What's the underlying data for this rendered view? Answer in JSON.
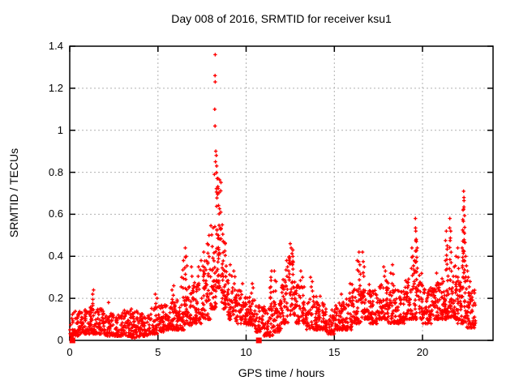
{
  "colors": {
    "marker": "#ff0000",
    "grid": "#b0b0b0",
    "border": "#000000",
    "background": "#ffffff",
    "text": "#000000"
  },
  "chart_data": {
    "type": "scatter",
    "title": "Day 008 of 2016, SRMTID for receiver ksu1",
    "xlabel": "GPS time / hours",
    "ylabel": "SRMTID / TECUs",
    "xlim": [
      0,
      24
    ],
    "ylim": [
      0,
      1.4
    ],
    "grid": "dotted",
    "legend": "none",
    "marker": "plus",
    "marker_color": "#ff0000",
    "xticks": [
      {
        "v": 0,
        "label": "0"
      },
      {
        "v": 5,
        "label": "5"
      },
      {
        "v": 10,
        "label": "10"
      },
      {
        "v": 15,
        "label": "15"
      },
      {
        "v": 20,
        "label": "20"
      }
    ],
    "yticks": [
      {
        "v": 0.0,
        "label": "0"
      },
      {
        "v": 0.2,
        "label": "0.2"
      },
      {
        "v": 0.4,
        "label": "0.4"
      },
      {
        "v": 0.6,
        "label": "0.6"
      },
      {
        "v": 0.8,
        "label": "0.8"
      },
      {
        "v": 1.0,
        "label": "1"
      },
      {
        "v": 1.2,
        "label": "1.2"
      },
      {
        "v": 1.4,
        "label": "1.4"
      }
    ],
    "points_model": {
      "comment": "Dense 30s-sampled scatter, hours 0-23. bins = [t_start, t_end, n_points, y_low, y_high] for the baseline band; spikes/outliers are individually read points.",
      "bins": [
        [
          0.0,
          0.5,
          48,
          0.02,
          0.14
        ],
        [
          0.5,
          1.0,
          48,
          0.03,
          0.15
        ],
        [
          1.0,
          1.5,
          52,
          0.03,
          0.17
        ],
        [
          1.5,
          2.0,
          50,
          0.03,
          0.15
        ],
        [
          2.0,
          2.5,
          46,
          0.02,
          0.14
        ],
        [
          2.5,
          3.0,
          46,
          0.02,
          0.13
        ],
        [
          3.0,
          3.5,
          50,
          0.02,
          0.15
        ],
        [
          3.5,
          4.0,
          50,
          0.01,
          0.14
        ],
        [
          4.0,
          4.5,
          46,
          0.02,
          0.13
        ],
        [
          4.5,
          5.0,
          50,
          0.03,
          0.16
        ],
        [
          5.0,
          5.5,
          50,
          0.04,
          0.17
        ],
        [
          5.5,
          6.0,
          50,
          0.05,
          0.19
        ],
        [
          6.0,
          6.5,
          52,
          0.05,
          0.22
        ],
        [
          6.5,
          7.0,
          52,
          0.07,
          0.26
        ],
        [
          7.0,
          7.5,
          55,
          0.08,
          0.28
        ],
        [
          7.5,
          8.0,
          55,
          0.1,
          0.38
        ],
        [
          8.0,
          8.3,
          40,
          0.15,
          0.55
        ],
        [
          8.3,
          8.6,
          55,
          0.25,
          0.8
        ],
        [
          8.6,
          8.9,
          42,
          0.15,
          0.48
        ],
        [
          8.9,
          9.4,
          50,
          0.1,
          0.32
        ],
        [
          9.4,
          10.0,
          55,
          0.08,
          0.24
        ],
        [
          10.0,
          10.5,
          50,
          0.07,
          0.22
        ],
        [
          10.5,
          11.0,
          46,
          0.04,
          0.17
        ],
        [
          11.0,
          11.5,
          50,
          0.02,
          0.16
        ],
        [
          11.5,
          12.0,
          50,
          0.04,
          0.2
        ],
        [
          12.0,
          12.4,
          44,
          0.08,
          0.3
        ],
        [
          12.4,
          12.8,
          50,
          0.12,
          0.42
        ],
        [
          12.8,
          13.4,
          52,
          0.08,
          0.28
        ],
        [
          13.4,
          14.0,
          52,
          0.05,
          0.22
        ],
        [
          14.0,
          14.5,
          50,
          0.05,
          0.18
        ],
        [
          14.5,
          15.0,
          46,
          0.03,
          0.16
        ],
        [
          15.0,
          15.5,
          50,
          0.05,
          0.18
        ],
        [
          15.5,
          16.0,
          50,
          0.05,
          0.2
        ],
        [
          16.0,
          16.5,
          52,
          0.08,
          0.28
        ],
        [
          16.5,
          17.0,
          52,
          0.1,
          0.28
        ],
        [
          17.0,
          17.5,
          50,
          0.08,
          0.24
        ],
        [
          17.5,
          18.0,
          52,
          0.1,
          0.28
        ],
        [
          18.0,
          18.5,
          52,
          0.08,
          0.28
        ],
        [
          18.5,
          19.0,
          50,
          0.08,
          0.24
        ],
        [
          19.0,
          19.5,
          52,
          0.1,
          0.3
        ],
        [
          19.5,
          20.0,
          55,
          0.1,
          0.32
        ],
        [
          20.0,
          20.5,
          50,
          0.08,
          0.25
        ],
        [
          20.5,
          21.0,
          55,
          0.1,
          0.28
        ],
        [
          21.0,
          21.5,
          55,
          0.1,
          0.3
        ],
        [
          21.5,
          22.0,
          55,
          0.1,
          0.28
        ],
        [
          22.0,
          22.5,
          56,
          0.08,
          0.3
        ],
        [
          22.5,
          23.0,
          58,
          0.06,
          0.25
        ]
      ],
      "spikes": [
        [
          1.3,
          0.22
        ],
        [
          1.35,
          0.24
        ],
        [
          2.2,
          0.18
        ],
        [
          4.85,
          0.22
        ],
        [
          4.95,
          0.2
        ],
        [
          5.8,
          0.24
        ],
        [
          5.9,
          0.26
        ],
        [
          6.35,
          0.3
        ],
        [
          6.45,
          0.38
        ],
        [
          6.55,
          0.44
        ],
        [
          6.6,
          0.4
        ],
        [
          6.9,
          0.35
        ],
        [
          7.3,
          0.35
        ],
        [
          7.45,
          0.38
        ],
        [
          7.6,
          0.42
        ],
        [
          7.8,
          0.46
        ],
        [
          7.9,
          0.5
        ],
        [
          8.65,
          0.55
        ],
        [
          8.7,
          0.47
        ],
        [
          9.1,
          0.36
        ],
        [
          9.3,
          0.33
        ],
        [
          9.8,
          0.27
        ],
        [
          10.35,
          0.27
        ],
        [
          10.4,
          0.25
        ],
        [
          11.35,
          0.25
        ],
        [
          11.4,
          0.3
        ],
        [
          11.45,
          0.33
        ],
        [
          11.6,
          0.33
        ],
        [
          11.7,
          0.28
        ],
        [
          12.3,
          0.38
        ],
        [
          12.35,
          0.35
        ],
        [
          12.5,
          0.46
        ],
        [
          12.55,
          0.44
        ],
        [
          12.65,
          0.43
        ],
        [
          13.1,
          0.33
        ],
        [
          13.2,
          0.3
        ],
        [
          13.65,
          0.3
        ],
        [
          13.75,
          0.28
        ],
        [
          14.2,
          0.21
        ],
        [
          15.4,
          0.22
        ],
        [
          15.9,
          0.27
        ],
        [
          16.3,
          0.38
        ],
        [
          16.4,
          0.42
        ],
        [
          16.45,
          0.36
        ],
        [
          16.6,
          0.42
        ],
        [
          16.7,
          0.35
        ],
        [
          17.8,
          0.35
        ],
        [
          17.9,
          0.33
        ],
        [
          18.2,
          0.32
        ],
        [
          18.3,
          0.36
        ],
        [
          19.4,
          0.44
        ],
        [
          19.45,
          0.4
        ],
        [
          19.55,
          0.38
        ],
        [
          19.6,
          0.58
        ],
        [
          19.62,
          0.52
        ],
        [
          19.65,
          0.47
        ],
        [
          19.7,
          0.44
        ],
        [
          20.8,
          0.32
        ],
        [
          21.3,
          0.38
        ],
        [
          21.35,
          0.52
        ],
        [
          21.4,
          0.45
        ],
        [
          21.55,
          0.58
        ],
        [
          21.6,
          0.52
        ],
        [
          21.8,
          0.35
        ],
        [
          21.9,
          0.4
        ],
        [
          22.0,
          0.44
        ],
        [
          22.25,
          0.44
        ],
        [
          22.3,
          0.62
        ],
        [
          22.33,
          0.71
        ],
        [
          22.35,
          0.68
        ],
        [
          22.38,
          0.51
        ],
        [
          22.45,
          0.4
        ],
        [
          22.55,
          0.33
        ],
        [
          22.6,
          0.3
        ],
        [
          22.7,
          0.28
        ]
      ],
      "outliers": [
        [
          0.02,
          0.05
        ],
        [
          8.25,
          1.36
        ],
        [
          8.24,
          1.26
        ],
        [
          8.25,
          1.23
        ],
        [
          8.22,
          1.1
        ],
        [
          8.24,
          1.02
        ],
        [
          8.28,
          0.9
        ],
        [
          8.31,
          0.88
        ],
        [
          8.26,
          0.85
        ],
        [
          8.33,
          0.83
        ],
        [
          8.2,
          0.79
        ],
        [
          8.36,
          0.77
        ]
      ],
      "zero_squares": [
        [
          0.15,
          0
        ],
        [
          10.72,
          0
        ]
      ]
    }
  }
}
